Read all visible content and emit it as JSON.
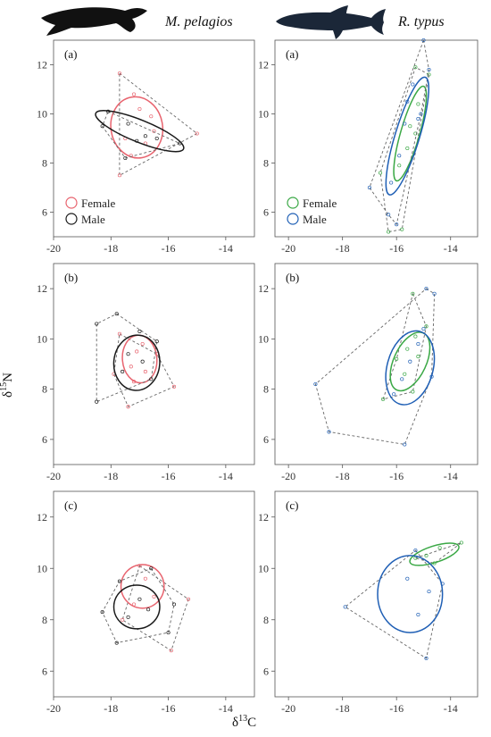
{
  "header": {
    "left_species": "M. pelagios",
    "right_species": "R. typus"
  },
  "axes": {
    "xlabel": {
      "delta": "δ",
      "sup": "13",
      "elem": "C"
    },
    "ylabel": {
      "delta": "δ",
      "sup": "15",
      "elem": "N"
    }
  },
  "colors": {
    "female_left": "#e8636e",
    "male_left": "#1a1a1a",
    "female_right": "#3aa845",
    "male_right": "#1f5fb5",
    "hull": "#666666"
  },
  "chart_data": [
    {
      "type": "scatter",
      "species": "M. pelagios",
      "panel": "(a)",
      "xlim": [
        -20,
        -13
      ],
      "ylim": [
        5,
        13
      ],
      "xticks": [
        -20,
        -18,
        -16,
        -14
      ],
      "yticks": [
        6,
        8,
        10,
        12
      ],
      "legend": [
        "Female",
        "Male"
      ],
      "legend_position": "bottom-left",
      "series": [
        {
          "name": "Female",
          "ellipse": {
            "cx": -17.1,
            "cy": 9.45,
            "rx": 0.9,
            "ry": 1.25,
            "angle": -10
          },
          "hull": [
            [
              -17.7,
              11.65
            ],
            [
              -15.0,
              9.2
            ],
            [
              -17.7,
              7.5
            ]
          ],
          "points": [
            [
              -17.7,
              11.65
            ],
            [
              -15.0,
              9.2
            ],
            [
              -17.7,
              7.5
            ],
            [
              -17.2,
              10.8
            ],
            [
              -16.6,
              9.9
            ],
            [
              -17.5,
              9.0
            ],
            [
              -16.8,
              8.8
            ],
            [
              -17.0,
              10.2
            ],
            [
              -16.5,
              9.3
            ],
            [
              -17.3,
              8.3
            ]
          ]
        },
        {
          "name": "Male",
          "ellipse": {
            "cx": -17.0,
            "cy": 9.3,
            "rx": 1.65,
            "ry": 0.45,
            "angle": 22
          },
          "hull": [
            [
              -18.1,
              10.1
            ],
            [
              -15.6,
              8.8
            ],
            [
              -17.5,
              8.2
            ],
            [
              -18.3,
              9.5
            ]
          ],
          "points": [
            [
              -18.1,
              10.1
            ],
            [
              -15.6,
              8.8
            ],
            [
              -17.5,
              8.2
            ],
            [
              -18.3,
              9.5
            ],
            [
              -17.4,
              9.6
            ],
            [
              -16.8,
              9.1
            ],
            [
              -17.1,
              8.9
            ],
            [
              -16.4,
              9.0
            ]
          ]
        }
      ]
    },
    {
      "type": "scatter",
      "species": "R. typus",
      "panel": "(a)",
      "xlim": [
        -20.5,
        -13
      ],
      "ylim": [
        5,
        13
      ],
      "xticks": [
        -20,
        -18,
        -16,
        -14
      ],
      "yticks": [
        6,
        8,
        10,
        12
      ],
      "legend": [
        "Female",
        "Male"
      ],
      "legend_position": "bottom-left",
      "series": [
        {
          "name": "Female",
          "ellipse": {
            "cx": -15.5,
            "cy": 9.2,
            "rx": 0.35,
            "ry": 2.0,
            "angle": 16
          },
          "hull": [
            [
              -14.8,
              11.6
            ],
            [
              -15.3,
              11.9
            ],
            [
              -16.6,
              7.6
            ],
            [
              -16.3,
              5.2
            ],
            [
              -15.8,
              5.3
            ]
          ],
          "points": [
            [
              -14.8,
              11.6
            ],
            [
              -15.3,
              11.9
            ],
            [
              -16.6,
              7.6
            ],
            [
              -16.3,
              5.2
            ],
            [
              -15.8,
              5.3
            ],
            [
              -15.5,
              9.5
            ],
            [
              -15.2,
              10.4
            ],
            [
              -15.6,
              8.6
            ],
            [
              -15.9,
              7.9
            ],
            [
              -15.3,
              9.2
            ]
          ]
        },
        {
          "name": "Male",
          "ellipse": {
            "cx": -15.6,
            "cy": 9.1,
            "rx": 0.45,
            "ry": 2.5,
            "angle": 17
          },
          "hull": [
            [
              -15.0,
              13.0
            ],
            [
              -14.8,
              11.8
            ],
            [
              -15.1,
              10.0
            ],
            [
              -16.0,
              5.5
            ],
            [
              -16.3,
              5.9
            ],
            [
              -17.0,
              7.0
            ]
          ],
          "points": [
            [
              -15.0,
              13.0
            ],
            [
              -14.8,
              11.8
            ],
            [
              -15.1,
              10.0
            ],
            [
              -16.0,
              5.5
            ],
            [
              -16.3,
              5.9
            ],
            [
              -17.0,
              7.0
            ],
            [
              -15.6,
              10.5
            ],
            [
              -15.4,
              11.2
            ],
            [
              -15.9,
              8.3
            ],
            [
              -16.2,
              7.2
            ],
            [
              -15.7,
              9.6
            ],
            [
              -15.2,
              9.8
            ]
          ]
        }
      ]
    },
    {
      "type": "scatter",
      "species": "M. pelagios",
      "panel": "(b)",
      "xlim": [
        -20,
        -13
      ],
      "ylim": [
        5,
        13
      ],
      "xticks": [
        -20,
        -18,
        -16,
        -14
      ],
      "yticks": [
        6,
        8,
        10,
        12
      ],
      "series": [
        {
          "name": "Female",
          "ellipse": {
            "cx": -17.0,
            "cy": 9.2,
            "rx": 0.6,
            "ry": 0.95,
            "angle": -5
          },
          "hull": [
            [
              -17.7,
              10.2
            ],
            [
              -16.4,
              9.4
            ],
            [
              -15.8,
              8.1
            ],
            [
              -17.4,
              7.3
            ],
            [
              -17.9,
              8.6
            ]
          ],
          "points": [
            [
              -17.7,
              10.2
            ],
            [
              -16.4,
              9.4
            ],
            [
              -15.8,
              8.1
            ],
            [
              -17.4,
              7.3
            ],
            [
              -17.9,
              8.6
            ],
            [
              -17.1,
              9.5
            ],
            [
              -16.8,
              8.7
            ],
            [
              -17.3,
              8.9
            ],
            [
              -16.9,
              9.8
            ],
            [
              -17.2,
              8.3
            ]
          ]
        },
        {
          "name": "Male",
          "ellipse": {
            "cx": -17.1,
            "cy": 9.05,
            "rx": 0.8,
            "ry": 1.1,
            "angle": 5
          },
          "hull": [
            [
              -17.8,
              11.0
            ],
            [
              -16.4,
              9.9
            ],
            [
              -16.6,
              8.4
            ],
            [
              -18.5,
              7.5
            ],
            [
              -18.5,
              10.6
            ]
          ],
          "points": [
            [
              -17.8,
              11.0
            ],
            [
              -16.4,
              9.9
            ],
            [
              -16.6,
              8.4
            ],
            [
              -18.5,
              7.5
            ],
            [
              -18.5,
              10.6
            ],
            [
              -17.4,
              9.4
            ],
            [
              -16.9,
              9.1
            ],
            [
              -17.6,
              8.7
            ],
            [
              -17.0,
              10.3
            ]
          ]
        }
      ]
    },
    {
      "type": "scatter",
      "species": "R. typus",
      "panel": "(b)",
      "xlim": [
        -20.5,
        -13
      ],
      "ylim": [
        5,
        13
      ],
      "xticks": [
        -20,
        -18,
        -16,
        -14
      ],
      "yticks": [
        6,
        8,
        10,
        12
      ],
      "series": [
        {
          "name": "Female",
          "ellipse": {
            "cx": -15.5,
            "cy": 9.1,
            "rx": 0.6,
            "ry": 1.25,
            "angle": 25
          },
          "hull": [
            [
              -15.4,
              11.8
            ],
            [
              -14.9,
              10.5
            ],
            [
              -15.4,
              7.9
            ],
            [
              -16.5,
              7.6
            ],
            [
              -16.0,
              9.2
            ]
          ],
          "points": [
            [
              -15.4,
              11.8
            ],
            [
              -14.9,
              10.5
            ],
            [
              -15.4,
              7.9
            ],
            [
              -16.5,
              7.6
            ],
            [
              -16.0,
              9.2
            ],
            [
              -15.6,
              9.6
            ],
            [
              -15.2,
              9.3
            ],
            [
              -15.7,
              8.6
            ],
            [
              -15.3,
              10.1
            ]
          ]
        },
        {
          "name": "Male",
          "ellipse": {
            "cx": -15.5,
            "cy": 8.85,
            "rx": 0.85,
            "ry": 1.5,
            "angle": 15
          },
          "hull": [
            [
              -14.9,
              12.0
            ],
            [
              -14.6,
              11.8
            ],
            [
              -14.7,
              8.5
            ],
            [
              -15.7,
              5.8
            ],
            [
              -18.5,
              6.3
            ],
            [
              -19.0,
              8.2
            ]
          ],
          "points": [
            [
              -14.9,
              12.0
            ],
            [
              -14.6,
              11.8
            ],
            [
              -14.7,
              8.5
            ],
            [
              -15.7,
              5.8
            ],
            [
              -18.5,
              6.3
            ],
            [
              -19.0,
              8.2
            ],
            [
              -15.2,
              9.8
            ],
            [
              -15.8,
              8.4
            ],
            [
              -16.1,
              7.8
            ],
            [
              -15.5,
              9.1
            ],
            [
              -15.0,
              10.4
            ]
          ]
        }
      ]
    },
    {
      "type": "scatter",
      "species": "M. pelagios",
      "panel": "(c)",
      "xlim": [
        -20,
        -13
      ],
      "ylim": [
        5,
        13
      ],
      "xticks": [
        -20,
        -18,
        -16,
        -14
      ],
      "yticks": [
        6,
        8,
        10,
        12
      ],
      "series": [
        {
          "name": "Female",
          "ellipse": {
            "cx": -16.9,
            "cy": 9.3,
            "rx": 0.75,
            "ry": 0.85,
            "angle": 0
          },
          "hull": [
            [
              -17.0,
              10.1
            ],
            [
              -15.3,
              8.8
            ],
            [
              -15.9,
              6.8
            ],
            [
              -17.6,
              8.0
            ]
          ],
          "points": [
            [
              -17.0,
              10.1
            ],
            [
              -15.3,
              8.8
            ],
            [
              -15.9,
              6.8
            ],
            [
              -17.6,
              8.0
            ],
            [
              -16.8,
              9.6
            ],
            [
              -16.5,
              8.9
            ],
            [
              -17.2,
              8.6
            ]
          ]
        },
        {
          "name": "Male",
          "ellipse": {
            "cx": -17.1,
            "cy": 8.5,
            "rx": 0.8,
            "ry": 0.85,
            "angle": 0
          },
          "hull": [
            [
              -16.6,
              10.0
            ],
            [
              -15.8,
              8.6
            ],
            [
              -16.0,
              7.5
            ],
            [
              -17.8,
              7.1
            ],
            [
              -18.3,
              8.3
            ],
            [
              -17.7,
              9.5
            ]
          ],
          "points": [
            [
              -16.6,
              10.0
            ],
            [
              -15.8,
              8.6
            ],
            [
              -16.0,
              7.5
            ],
            [
              -17.8,
              7.1
            ],
            [
              -18.3,
              8.3
            ],
            [
              -17.7,
              9.5
            ],
            [
              -17.0,
              8.8
            ],
            [
              -17.4,
              8.1
            ],
            [
              -16.7,
              8.4
            ]
          ]
        }
      ]
    },
    {
      "type": "scatter",
      "species": "R. typus",
      "panel": "(c)",
      "xlim": [
        -20.5,
        -13
      ],
      "ylim": [
        5,
        13
      ],
      "xticks": [
        -20,
        -18,
        -16,
        -14
      ],
      "yticks": [
        6,
        8,
        10,
        12
      ],
      "series": [
        {
          "name": "Female",
          "ellipse": {
            "cx": -14.6,
            "cy": 10.55,
            "rx": 0.95,
            "ry": 0.32,
            "angle": -18
          },
          "hull": [
            [
              -15.3,
              10.4
            ],
            [
              -13.6,
              11.0
            ],
            [
              -14.6,
              10.2
            ]
          ],
          "points": [
            [
              -15.3,
              10.4
            ],
            [
              -13.6,
              11.0
            ],
            [
              -14.6,
              10.2
            ],
            [
              -14.4,
              10.8
            ],
            [
              -14.9,
              10.5
            ]
          ]
        },
        {
          "name": "Male",
          "ellipse": {
            "cx": -15.5,
            "cy": 9.0,
            "rx": 1.2,
            "ry": 1.5,
            "angle": 0
          },
          "hull": [
            [
              -15.3,
              10.7
            ],
            [
              -14.3,
              9.4
            ],
            [
              -14.9,
              6.5
            ],
            [
              -17.9,
              8.5
            ]
          ],
          "points": [
            [
              -15.3,
              10.7
            ],
            [
              -14.3,
              9.4
            ],
            [
              -14.9,
              6.5
            ],
            [
              -17.9,
              8.5
            ],
            [
              -15.6,
              9.6
            ],
            [
              -14.8,
              9.1
            ],
            [
              -15.2,
              8.2
            ]
          ]
        }
      ]
    }
  ]
}
